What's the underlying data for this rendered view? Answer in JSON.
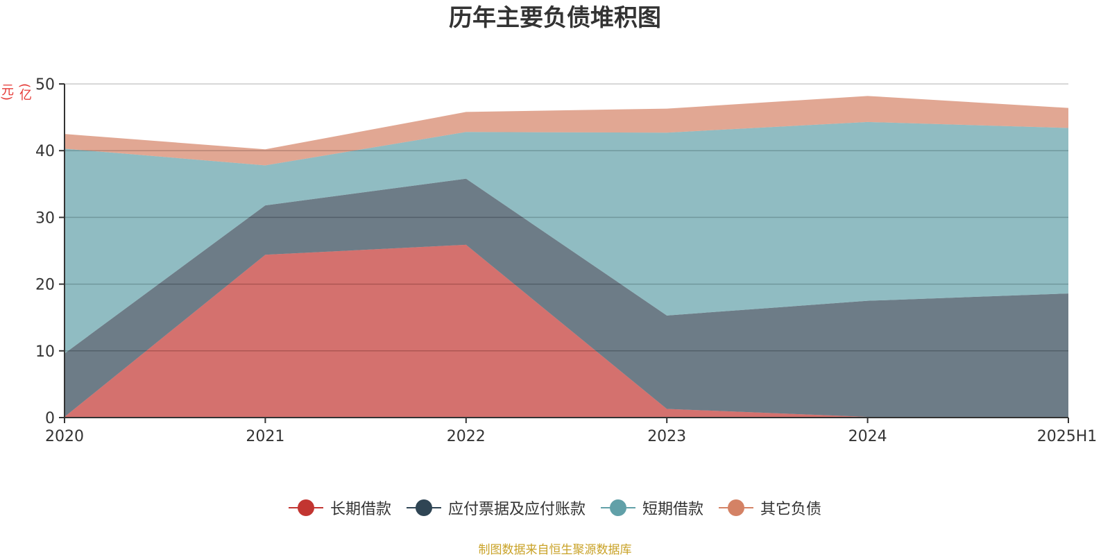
{
  "chart_data": {
    "type": "area",
    "title": "历年主要负债堆积图",
    "unit": "(亿元)",
    "categories": [
      "2020",
      "2021",
      "2022",
      "2023",
      "2024",
      "2025H1"
    ],
    "ylim": [
      0,
      50
    ],
    "yticks": [
      "0",
      "10",
      "20",
      "30",
      "40",
      "50"
    ],
    "stacked": true,
    "grid": true,
    "legend_position": "bottom",
    "series": [
      {
        "name": "长期借款",
        "color": "#c23531",
        "values": [
          0.1,
          24.4,
          25.9,
          1.3,
          0.1,
          0.1
        ]
      },
      {
        "name": "应付票据及应付账款",
        "color": "#2f4554",
        "values": [
          9.5,
          7.4,
          9.9,
          14.0,
          17.4,
          18.5
        ]
      },
      {
        "name": "短期借款",
        "color": "#61a0a8",
        "values": [
          30.7,
          6.0,
          7.0,
          27.4,
          26.8,
          24.8
        ]
      },
      {
        "name": "其它负债",
        "color": "#d48265",
        "values": [
          2.2,
          2.4,
          3.0,
          3.6,
          3.9,
          3.0
        ]
      }
    ]
  },
  "footer": "制图数据来自恒生聚源数据库"
}
